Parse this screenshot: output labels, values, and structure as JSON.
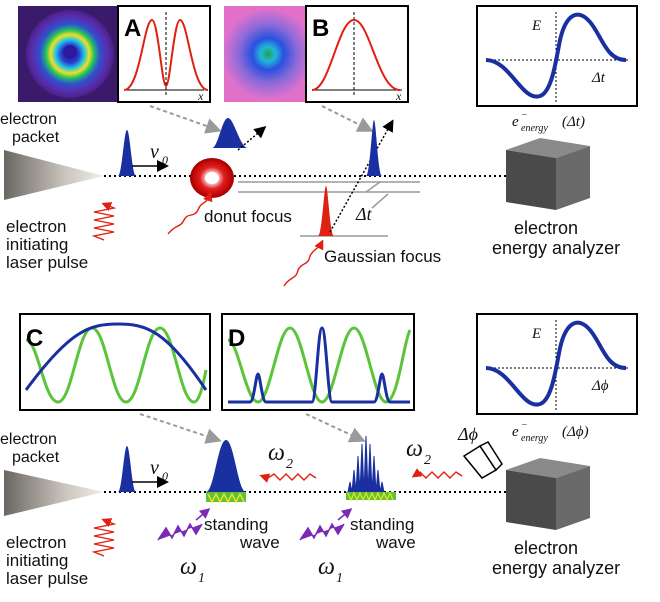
{
  "top": {
    "panel_a_letter": "A",
    "panel_b_letter": "B",
    "panel_a_axis_label": "x",
    "panel_b_axis_label": "x",
    "energy_axis_label": "E",
    "time_axis_label": "Δt",
    "energy_readout_main": "e",
    "energy_readout_sup": "−",
    "energy_readout_sub": "energy",
    "energy_readout_arg": "(Δt)",
    "electron_packet_line1": "electron",
    "electron_packet_line2": "packet",
    "velocity_symbol": "v",
    "velocity_subscript": "0",
    "initiating_line1": "electron",
    "initiating_line2": "initiating",
    "initiating_line3": "laser pulse",
    "donut_focus": "donut focus",
    "gaussian_focus": "Gaussian focus",
    "delay_label": "Δt",
    "analyzer_line1": "electron",
    "analyzer_line2": "energy analyzer"
  },
  "bottom": {
    "panel_c_letter": "C",
    "panel_d_letter": "D",
    "energy_axis_label": "E",
    "phase_axis_label": "Δϕ",
    "energy_readout_main": "e",
    "energy_readout_sup": "−",
    "energy_readout_sub": "energy",
    "energy_readout_arg": "(Δϕ)",
    "electron_packet_line1": "electron",
    "electron_packet_line2": "packet",
    "velocity_symbol": "v",
    "velocity_subscript": "0",
    "omega2_left_symbol": "ω",
    "omega2_left_sub": "2",
    "omega2_right_symbol": "ω",
    "omega2_right_sub": "2",
    "phase_shifter_label": "Δϕ",
    "omega1_left_symbol": "ω",
    "omega1_left_sub": "1",
    "omega1_right_symbol": "ω",
    "omega1_right_sub": "1",
    "standing_wave_1_line1": "standing",
    "standing_wave_1_line2": "wave",
    "standing_wave_2_line1": "standing",
    "standing_wave_2_line2": "wave",
    "initiating_line1": "electron",
    "initiating_line2": "initiating",
    "initiating_line3": "laser pulse",
    "analyzer_line1": "electron",
    "analyzer_line2": "energy analyzer"
  },
  "colors": {
    "electron_blue": "#1a2fa0",
    "laser_red": "#e02010",
    "standing_green": "#5cc43a",
    "omega1_purple": "#7a2ab8",
    "axis_gray": "#999999",
    "analyzer_gray": "#555555"
  }
}
